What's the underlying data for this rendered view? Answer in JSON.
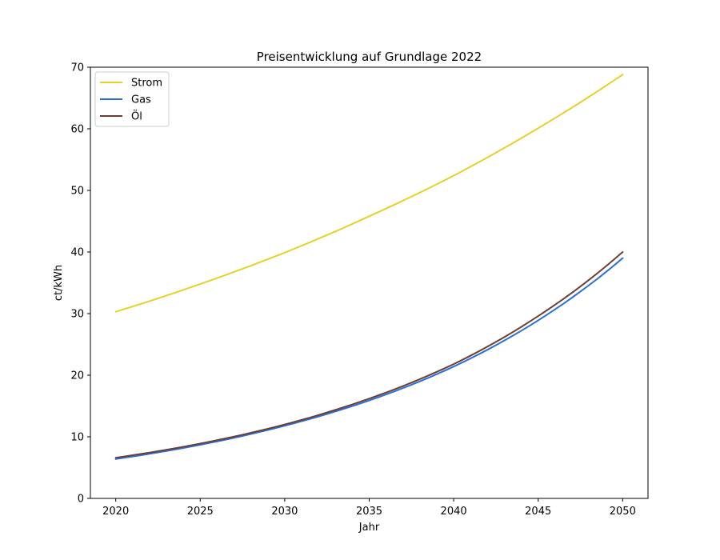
{
  "chart_data": {
    "type": "line",
    "title": "Preisentwicklung auf Grundlage 2022",
    "xlabel": "Jahr",
    "ylabel": "ct/kWh",
    "xlim": [
      2018.5,
      2051.5
    ],
    "ylim": [
      0,
      70
    ],
    "xticks": [
      2020,
      2025,
      2030,
      2035,
      2040,
      2045,
      2050
    ],
    "yticks": [
      0,
      10,
      20,
      30,
      40,
      50,
      60,
      70
    ],
    "grid": false,
    "legend_position": "top-left",
    "x": [
      2020,
      2025,
      2030,
      2035,
      2040,
      2045,
      2050
    ],
    "series": [
      {
        "name": "Strom",
        "color": "#e6d02a",
        "values": [
          30.3,
          34.8,
          39.9,
          45.8,
          52.4,
          60.1,
          68.8
        ]
      },
      {
        "name": "Gas",
        "color": "#2b6fd6",
        "values": [
          6.4,
          8.7,
          11.8,
          15.9,
          21.4,
          28.9,
          39.0
        ]
      },
      {
        "name": "Öl",
        "color": "#6b3d35",
        "values": [
          6.6,
          8.9,
          12.0,
          16.2,
          21.8,
          29.6,
          40.0
        ]
      }
    ]
  }
}
